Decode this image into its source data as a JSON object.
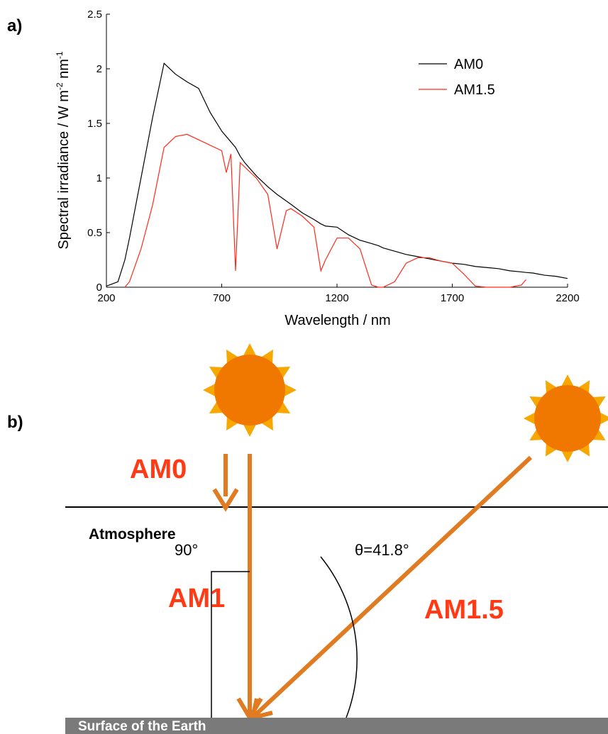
{
  "chart_data": {
    "type": "line",
    "panel_label": "a)",
    "x_label": "Wavelength / nm",
    "y_label_parts": [
      "Spectral irradiance / W m",
      "-2",
      " nm",
      "-1"
    ],
    "x": [
      200,
      250,
      280,
      300,
      350,
      400,
      450,
      500,
      550,
      600,
      650,
      700,
      720,
      740,
      760,
      780,
      800,
      850,
      900,
      940,
      980,
      1000,
      1050,
      1100,
      1130,
      1150,
      1200,
      1250,
      1300,
      1350,
      1380,
      1400,
      1450,
      1500,
      1550,
      1600,
      1650,
      1700,
      1750,
      1800,
      1850,
      1900,
      1950,
      2000,
      2020,
      2050,
      2100,
      2150,
      2200
    ],
    "series": [
      {
        "name": "AM0",
        "color": "#000000",
        "values": [
          0.01,
          0.05,
          0.25,
          0.45,
          1.0,
          1.55,
          2.05,
          1.95,
          1.88,
          1.82,
          1.6,
          1.43,
          1.38,
          1.33,
          1.28,
          1.2,
          1.14,
          1.02,
          0.92,
          0.85,
          0.79,
          0.76,
          0.68,
          0.62,
          0.58,
          0.56,
          0.55,
          0.48,
          0.43,
          0.4,
          0.38,
          0.36,
          0.33,
          0.3,
          0.28,
          0.26,
          0.24,
          0.22,
          0.21,
          0.19,
          0.18,
          0.17,
          0.15,
          0.14,
          0.135,
          0.13,
          0.11,
          0.1,
          0.08
        ]
      },
      {
        "name": "AM1.5",
        "color": "#ff2a1a",
        "values": [
          null,
          null,
          0,
          0.05,
          0.35,
          0.75,
          1.28,
          1.38,
          1.4,
          1.35,
          1.3,
          1.25,
          1.05,
          1.22,
          0.15,
          1.14,
          1.1,
          1.0,
          0.85,
          0.35,
          0.7,
          0.72,
          0.65,
          0.55,
          0.15,
          0.25,
          0.45,
          0.45,
          0.35,
          0.02,
          0,
          0,
          0.05,
          0.22,
          0.27,
          0.27,
          0.24,
          0.22,
          0.12,
          0.01,
          0,
          0,
          0,
          0.02,
          0.07,
          null,
          null,
          null,
          null
        ]
      }
    ],
    "xlim": [
      200,
      2200
    ],
    "xticks": [
      200,
      700,
      1200,
      1700,
      2200
    ],
    "ylim": [
      0,
      2.5
    ],
    "yticks": [
      0,
      0.5,
      1,
      1.5,
      2,
      2.5
    ],
    "grid": false,
    "legend": "top-right"
  },
  "diagram": {
    "panel_label": "b)",
    "am0": "AM0",
    "atmosphere": "Atmosphere",
    "am1": "AM1",
    "am15": "AM1.5",
    "right_angle": "90°",
    "angle": "θ=41.8°",
    "surface": "Surface of the Earth"
  }
}
